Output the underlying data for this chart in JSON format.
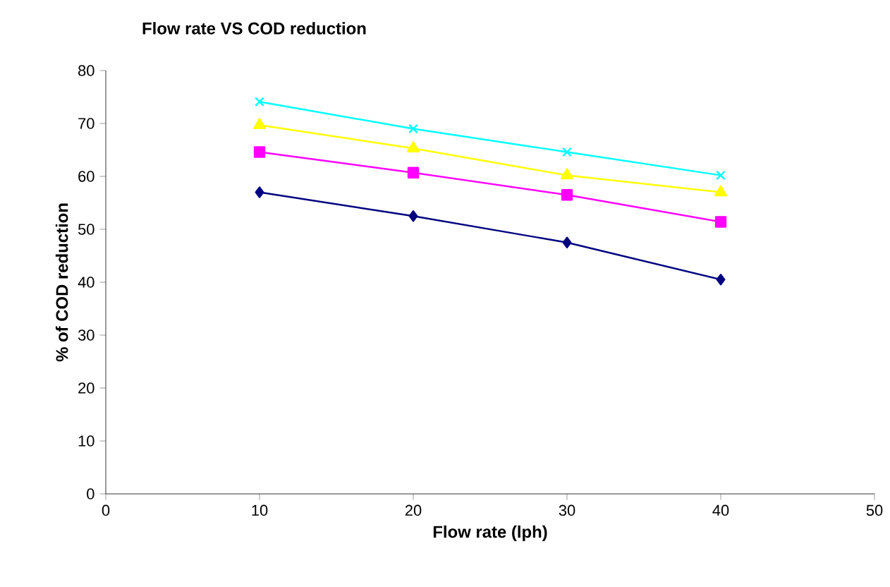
{
  "chart_data": {
    "type": "line",
    "title": "Flow rate VS COD reduction",
    "xlabel": "Flow rate (lph)",
    "ylabel": "% of COD reduction",
    "x": [
      10,
      20,
      30,
      40
    ],
    "xlim": [
      0,
      50
    ],
    "xticks": [
      0,
      10,
      20,
      30,
      40,
      50
    ],
    "ylim": [
      0,
      80
    ],
    "yticks": [
      0,
      10,
      20,
      30,
      40,
      50,
      60,
      70,
      80
    ],
    "series": [
      {
        "color": "#00ffff",
        "marker": "cross",
        "values": [
          74.1,
          69.0,
          64.6,
          60.2
        ]
      },
      {
        "color": "#ffff00",
        "marker": "triangle",
        "values": [
          69.7,
          65.3,
          60.2,
          57.0
        ]
      },
      {
        "color": "#ff00ff",
        "marker": "square",
        "values": [
          64.6,
          60.7,
          56.5,
          51.4
        ]
      },
      {
        "color": "#000080",
        "marker": "diamond",
        "values": [
          57.0,
          52.5,
          47.5,
          40.5
        ]
      }
    ]
  }
}
